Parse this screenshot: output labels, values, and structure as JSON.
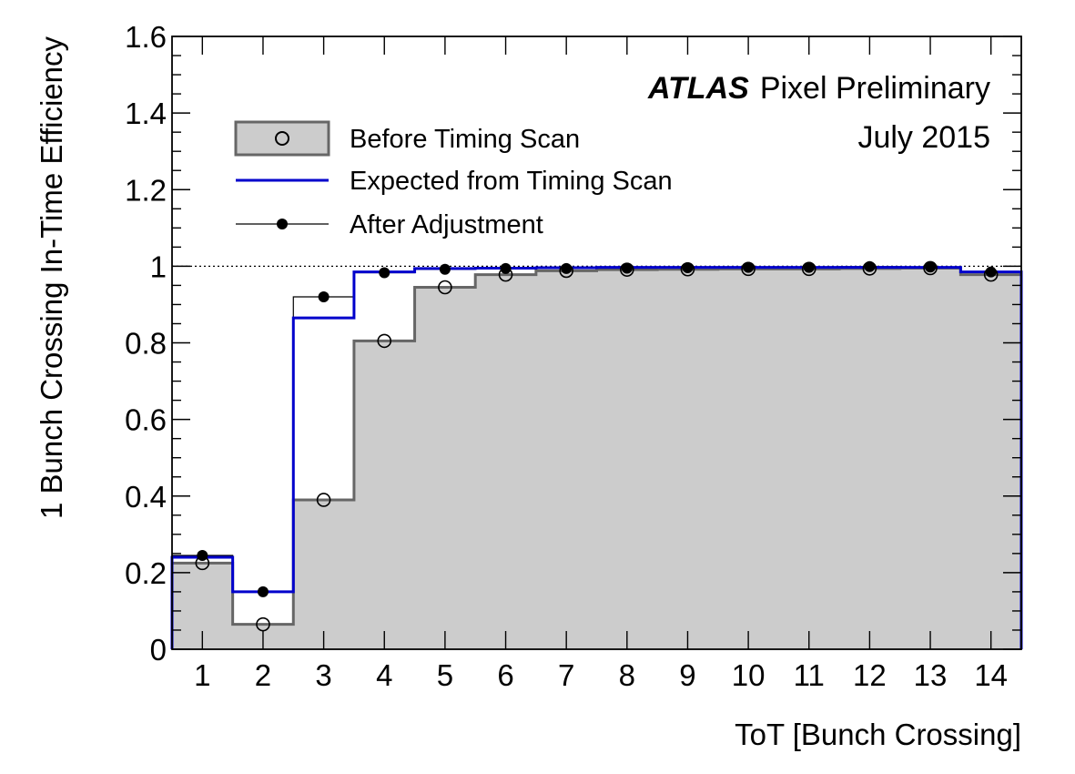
{
  "chart_data": {
    "type": "line",
    "subtype": "step-histogram",
    "xlabel": "ToT [Bunch Crossing]",
    "ylabel": "1 Bunch Crossing In-Time Efficiency",
    "xlim": [
      0.5,
      14.5
    ],
    "ylim": [
      0,
      1.6
    ],
    "x": [
      1,
      2,
      3,
      4,
      5,
      6,
      7,
      8,
      9,
      10,
      11,
      12,
      13,
      14
    ],
    "x_tick_labels": [
      "1",
      "2",
      "3",
      "4",
      "5",
      "6",
      "7",
      "8",
      "9",
      "10",
      "11",
      "12",
      "13",
      "14"
    ],
    "y_ticks": [
      0,
      0.2,
      0.4,
      0.6,
      0.8,
      1,
      1.2,
      1.4,
      1.6
    ],
    "y_tick_labels": [
      "0",
      "0.2",
      "0.4",
      "0.6",
      "0.8",
      "1",
      "1.2",
      "1.4",
      "1.6"
    ],
    "reference_line": {
      "y": 1,
      "style": "dotted"
    },
    "series": [
      {
        "name": "Before Timing Scan",
        "style": "filled-step-with-open-circles",
        "fill_color": "#cccccc",
        "line_color": "#666666",
        "values": [
          0.225,
          0.065,
          0.39,
          0.805,
          0.945,
          0.978,
          0.988,
          0.991,
          0.992,
          0.993,
          0.993,
          0.994,
          0.995,
          0.978
        ]
      },
      {
        "name": "Expected from Timing Scan",
        "style": "step-line",
        "line_color": "#0000cc",
        "values": [
          0.24,
          0.15,
          0.865,
          0.985,
          0.994,
          0.995,
          0.996,
          0.997,
          0.997,
          0.997,
          0.997,
          0.997,
          0.997,
          0.985
        ]
      },
      {
        "name": "After Adjustment",
        "style": "thin-step-with-filled-circles",
        "line_color": "#000000",
        "values": [
          0.245,
          0.15,
          0.92,
          0.983,
          0.992,
          0.994,
          0.994,
          0.995,
          0.996,
          0.997,
          0.997,
          0.999,
          0.998,
          0.985
        ]
      }
    ],
    "legend": {
      "placement": "top-left",
      "entries": [
        "Before Timing Scan",
        "Expected from Timing Scan",
        "After Adjustment"
      ]
    },
    "annotation": {
      "experiment": "ATLAS",
      "label": "Pixel Preliminary",
      "date": "July 2015"
    }
  }
}
